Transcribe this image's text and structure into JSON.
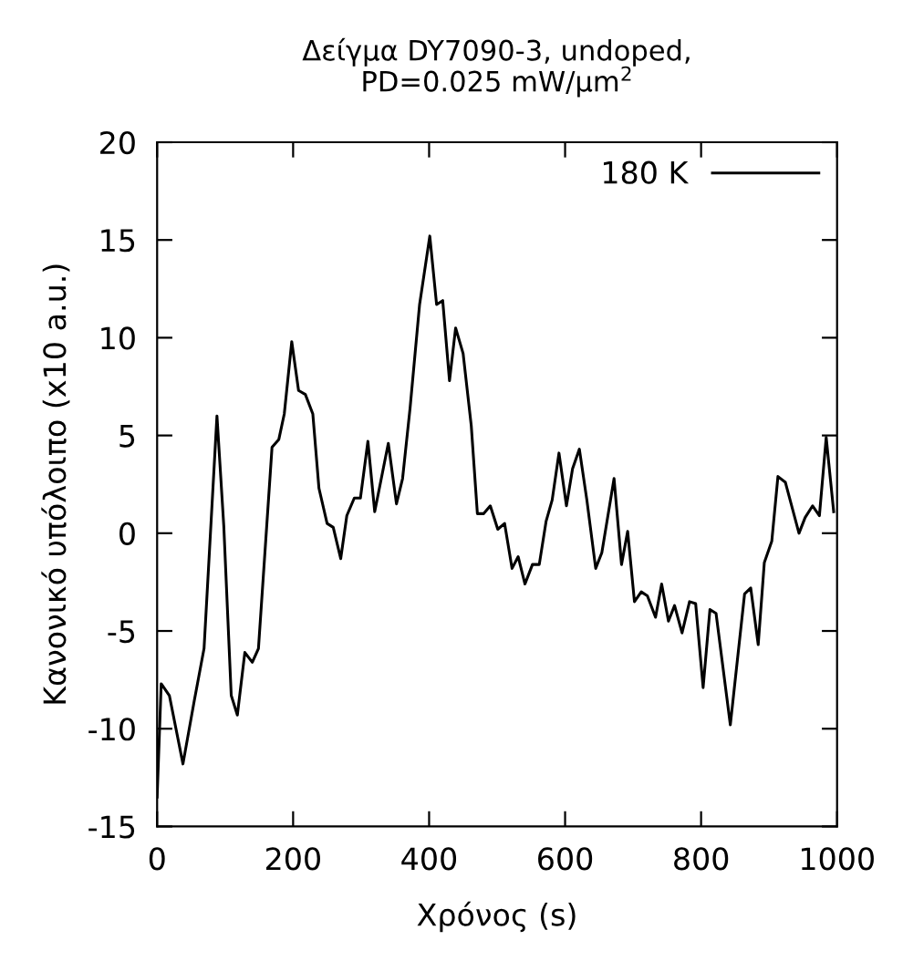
{
  "chart_data": {
    "type": "line",
    "title": "Δείγμα DY7090-3, undoped,\nPD=0.025 mW/μm$^{2}$",
    "xlabel": "Χρόνος (s)",
    "ylabel": "Κανονικό υπόλοιπο (x10 a.u.)",
    "xlim": [
      0,
      1000
    ],
    "xticks": [
      0,
      200,
      400,
      600,
      800,
      1000
    ],
    "ylim": [
      -15,
      20
    ],
    "yticks": [
      -15,
      -10,
      -5,
      0,
      5,
      10,
      15,
      20
    ],
    "grid": false,
    "legend": "top right",
    "marker": "none",
    "line_style": "solid",
    "series": [
      {
        "name": "180 K",
        "color": "#000000",
        "x": [
          0,
          6,
          18,
          38,
          55,
          69,
          88,
          98,
          109,
          118,
          129,
          140,
          149,
          169,
          179,
          187,
          198,
          208,
          218,
          229,
          238,
          250,
          259,
          270,
          279,
          290,
          299,
          310,
          320,
          340,
          352,
          361,
          372,
          386,
          401,
          411,
          420,
          430,
          439,
          450,
          462,
          471,
          480,
          490,
          501,
          511,
          522,
          531,
          541,
          552,
          562,
          572,
          581,
          591,
          602,
          611,
          621,
          632,
          645,
          654,
          672,
          683,
          692,
          702,
          712,
          721,
          733,
          742,
          752,
          761,
          772,
          783,
          792,
          803,
          813,
          822,
          843,
          864,
          873,
          884,
          893,
          904,
          913,
          924,
          944,
          953,
          964,
          974,
          984,
          995
        ],
        "values": [
          -13.5,
          -7.7,
          -8.3,
          -11.8,
          -8.5,
          -5.9,
          6.0,
          0.4,
          -8.3,
          -9.3,
          -6.1,
          -6.6,
          -5.9,
          4.4,
          4.8,
          6.1,
          9.8,
          7.3,
          7.1,
          6.1,
          2.3,
          0.5,
          0.3,
          -1.3,
          0.9,
          1.8,
          1.8,
          4.7,
          1.1,
          4.6,
          1.5,
          2.8,
          6.4,
          11.7,
          15.2,
          11.7,
          11.9,
          7.8,
          10.5,
          9.2,
          5.5,
          1.0,
          1.0,
          1.4,
          0.2,
          0.5,
          -1.8,
          -1.2,
          -2.6,
          -1.6,
          -1.6,
          0.6,
          1.7,
          4.1,
          1.4,
          3.3,
          4.3,
          1.7,
          -1.8,
          -1.0,
          2.8,
          -1.6,
          0.1,
          -3.5,
          -3.0,
          -3.2,
          -4.3,
          -2.6,
          -4.5,
          -3.7,
          -5.1,
          -3.5,
          -3.6,
          -7.9,
          -3.9,
          -4.1,
          -9.8,
          -3.1,
          -2.8,
          -5.7,
          -1.5,
          -0.4,
          2.9,
          2.6,
          0.0,
          0.8,
          1.4,
          0.9,
          4.9,
          1.1
        ]
      }
    ]
  }
}
